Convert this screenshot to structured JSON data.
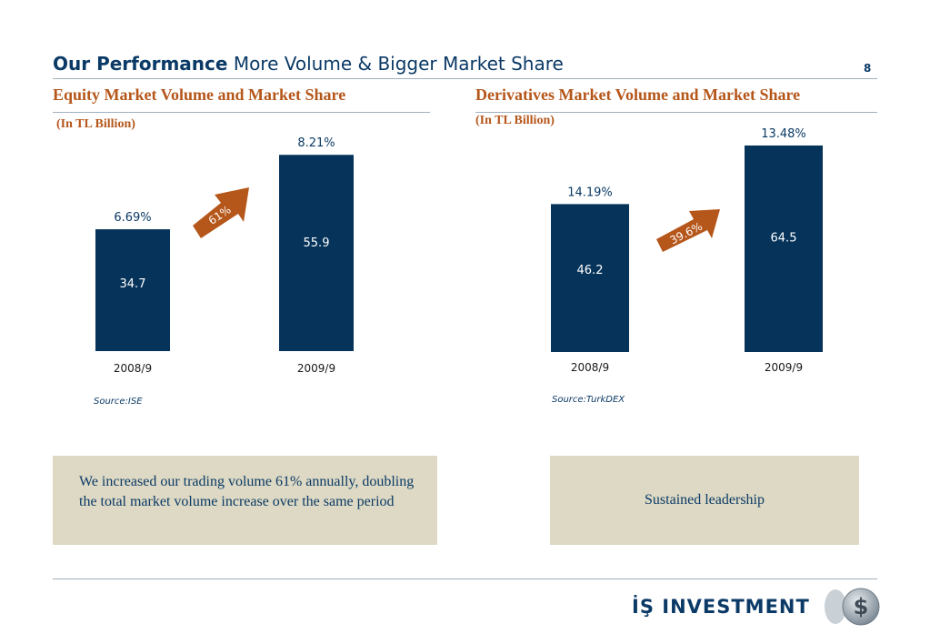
{
  "header": {
    "title_bold": "Our Performance",
    "title_rest": "More Volume & Bigger Market Share",
    "page_number": "8"
  },
  "left": {
    "heading": "Equity Market Volume and Market Share",
    "unit": "(In TL Billion)",
    "source": "Source:ISE",
    "growth_label": "61%",
    "note": "We increased our trading volume 61% annually, doubling the total market volume increase over the same period"
  },
  "right": {
    "heading": "Derivatives Market Volume and Market Share",
    "unit": "(In TL Billion)",
    "source": "Source:TurkDEX",
    "growth_label": "39.6%",
    "note": "Sustained leadership"
  },
  "logo": {
    "text": "İŞ INVESTMENT"
  },
  "colors": {
    "bar": "#06335a",
    "arrow": "#b5561a",
    "heading": "#b5561a",
    "navy": "#0b3a66",
    "note_bg": "#ddd9c4"
  },
  "chart_data": [
    {
      "type": "bar",
      "title": "Equity Market Volume and Market Share",
      "ylabel": "(In TL Billion)",
      "categories": [
        "2008/9",
        "2009/9"
      ],
      "values": [
        34.7,
        55.9
      ],
      "value_labels": [
        "34.7",
        "55.9"
      ],
      "market_share": [
        "6.69%",
        "8.21%"
      ],
      "ylim": [
        0,
        60
      ],
      "grid": false
    },
    {
      "type": "bar",
      "title": "Derivatives Market Volume and Market Share",
      "ylabel": "(In TL Billion)",
      "categories": [
        "2008/9",
        "2009/9"
      ],
      "values": [
        46.2,
        64.5
      ],
      "value_labels": [
        "46.2",
        "64.5"
      ],
      "market_share": [
        "14.19%",
        "13.48%"
      ],
      "ylim": [
        0,
        71
      ],
      "grid": false
    }
  ]
}
